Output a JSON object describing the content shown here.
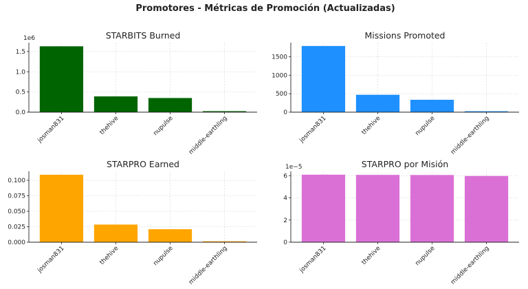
{
  "title": "Promotores - Métricas de Promoción (Actualizadas)",
  "chart_data": [
    {
      "type": "bar",
      "title": "STARBITS Burned",
      "categories": [
        "josman831",
        "thehive",
        "nupulse",
        "middle-earthling"
      ],
      "values": [
        1630000,
        390000,
        350000,
        25000
      ],
      "ylim": [
        0,
        1720000
      ],
      "yticks": [
        0,
        500000,
        1000000,
        1500000
      ],
      "yticklabels": [
        "0.0",
        "0.5",
        "1.0",
        "1.5"
      ],
      "multiplier": "1e6",
      "color": "#006400",
      "grid": true
    },
    {
      "type": "bar",
      "title": "Missions Promoted",
      "categories": [
        "josman831",
        "thehive",
        "nupulse",
        "middle-earthling"
      ],
      "values": [
        1790,
        470,
        335,
        25
      ],
      "ylim": [
        0,
        1880
      ],
      "yticks": [
        0,
        500,
        1000,
        1500
      ],
      "yticklabels": [
        "0",
        "500",
        "1000",
        "1500"
      ],
      "multiplier": "",
      "color": "#1e90ff",
      "grid": true
    },
    {
      "type": "bar",
      "title": "STARPRO Earned",
      "categories": [
        "josman831",
        "thehive",
        "nupulse",
        "middle-earthling"
      ],
      "values": [
        0.109,
        0.0285,
        0.021,
        0.0015
      ],
      "ylim": [
        0,
        0.1145
      ],
      "yticks": [
        0,
        0.025,
        0.05,
        0.075,
        0.1
      ],
      "yticklabels": [
        "0.000",
        "0.025",
        "0.050",
        "0.075",
        "0.100"
      ],
      "multiplier": "",
      "color": "#ffa500",
      "grid": true
    },
    {
      "type": "bar",
      "title": "STARPRO por Misión",
      "categories": [
        "josman831",
        "thehive",
        "nupulse",
        "middle-earthling"
      ],
      "values": [
        6.09e-05,
        6.07e-05,
        6.06e-05,
        5.97e-05
      ],
      "ylim": [
        0,
        6.39e-05
      ],
      "yticks": [
        0,
        2e-05,
        4e-05,
        6e-05
      ],
      "yticklabels": [
        "0",
        "2",
        "4",
        "6"
      ],
      "multiplier": "1e−5",
      "color": "#da70d6",
      "grid": true
    }
  ]
}
